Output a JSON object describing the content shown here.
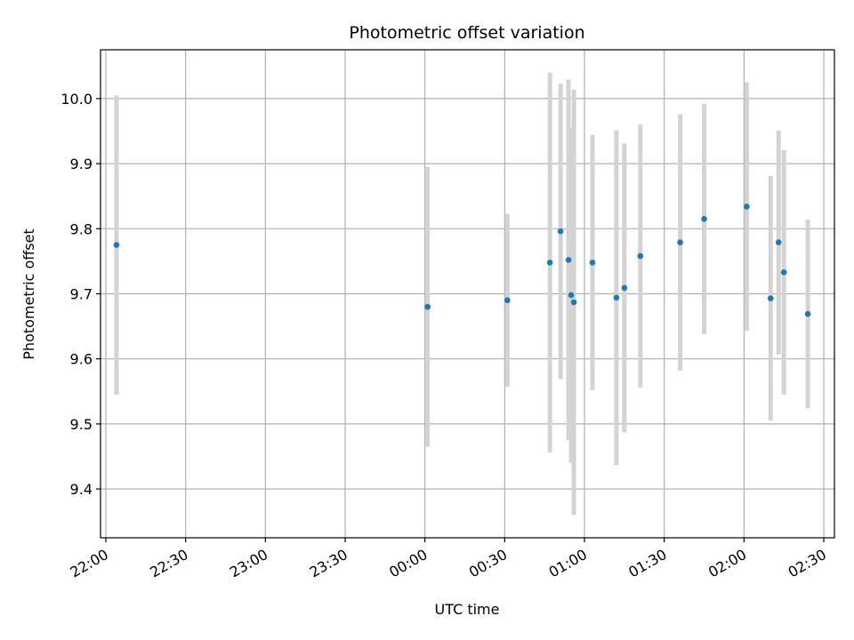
{
  "chart_data": {
    "type": "scatter",
    "title": "Photometric offset variation",
    "xlabel": "UTC time",
    "ylabel": "Photometric offset",
    "x_is_time": true,
    "x_day_crossing": "data points after 00:00 belong to the next day",
    "xlim": [
      "21:58",
      "02:34"
    ],
    "ylim": [
      9.325,
      10.075
    ],
    "x_ticks": [
      "22:00",
      "22:30",
      "23:00",
      "23:30",
      "00:00",
      "00:30",
      "01:00",
      "01:30",
      "02:00",
      "02:30"
    ],
    "y_ticks": [
      9.4,
      9.5,
      9.6,
      9.7,
      9.8,
      9.9,
      10.0
    ],
    "y_tick_labels": [
      "9.4",
      "9.5",
      "9.6",
      "9.7",
      "9.8",
      "9.9",
      "10.0"
    ],
    "grid": true,
    "marker_color": "#1f77b4",
    "errorbar_color": "#d3d3d3",
    "points": [
      {
        "x": "22:04",
        "y": 9.775,
        "err": 0.23
      },
      {
        "x": "00:01",
        "y": 9.68,
        "err": 0.215
      },
      {
        "x": "00:31",
        "y": 9.69,
        "err": 0.133
      },
      {
        "x": "00:47",
        "y": 9.748,
        "err": 0.292
      },
      {
        "x": "00:51",
        "y": 9.796,
        "err": 0.227
      },
      {
        "x": "00:54",
        "y": 9.752,
        "err": 0.277
      },
      {
        "x": "00:55",
        "y": 9.698,
        "err": 0.258
      },
      {
        "x": "00:56",
        "y": 9.687,
        "err": 0.327
      },
      {
        "x": "01:03",
        "y": 9.748,
        "err": 0.196
      },
      {
        "x": "01:12",
        "y": 9.694,
        "err": 0.257
      },
      {
        "x": "01:15",
        "y": 9.709,
        "err": 0.222
      },
      {
        "x": "01:21",
        "y": 9.758,
        "err": 0.202
      },
      {
        "x": "01:36",
        "y": 9.779,
        "err": 0.197
      },
      {
        "x": "01:45",
        "y": 9.815,
        "err": 0.177
      },
      {
        "x": "02:01",
        "y": 9.834,
        "err": 0.191
      },
      {
        "x": "02:10",
        "y": 9.693,
        "err": 0.188
      },
      {
        "x": "02:13",
        "y": 9.779,
        "err": 0.172
      },
      {
        "x": "02:15",
        "y": 9.733,
        "err": 0.188
      },
      {
        "x": "02:24",
        "y": 9.669,
        "err": 0.145
      }
    ]
  }
}
